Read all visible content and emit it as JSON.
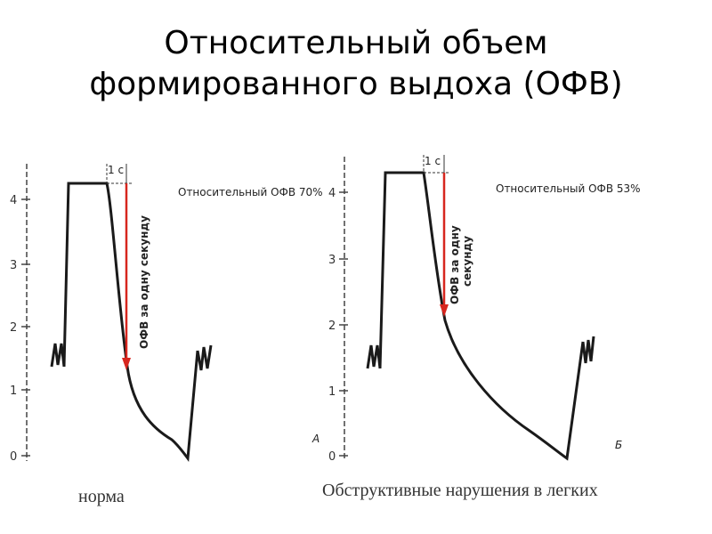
{
  "title": {
    "line1": "Относительный объем",
    "line2": "формированного выдоха (ОФВ)"
  },
  "panel_a": {
    "y_ticks": [
      "0",
      "1",
      "2",
      "3",
      "4"
    ],
    "time_marker": "1 с",
    "ratio_label": "Относительный ОФВ 70%",
    "arrow_label": "ОФВ за одну секунду",
    "panel_letter": "А",
    "caption": "норма"
  },
  "panel_b": {
    "y_ticks": [
      "0",
      "1",
      "2",
      "3",
      "4"
    ],
    "time_marker": "1 с",
    "ratio_label": "Относительный ОФВ 53%",
    "arrow_label_line1": "ОФВ за одну",
    "arrow_label_line2": "секунду",
    "panel_letter": "Б",
    "caption": "Обструктивные нарушения в легких"
  },
  "colors": {
    "curve": "#1a1a1a",
    "arrow": "#d7261e",
    "axis": "#333333"
  }
}
